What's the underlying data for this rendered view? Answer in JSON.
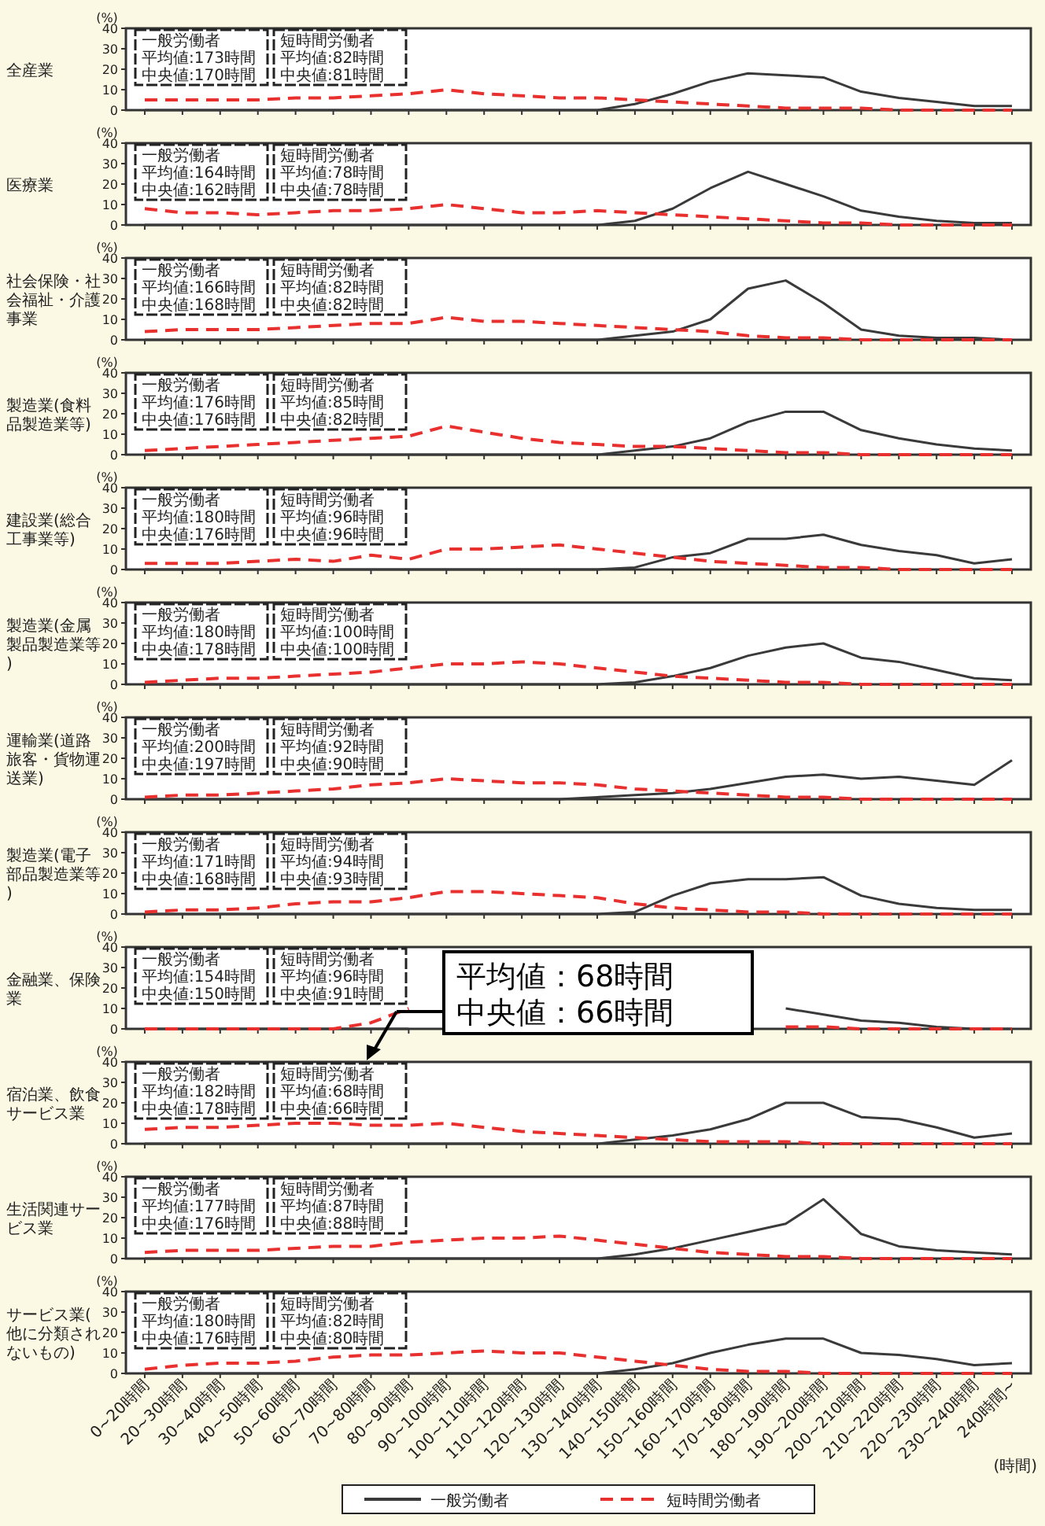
{
  "chart_data": [
    {
      "type": "line",
      "title": "全産業",
      "ylabel": "(%)",
      "categories": [
        null,
        null,
        null,
        null,
        null,
        null,
        null,
        null,
        null,
        null,
        null,
        null,
        null,
        null,
        null,
        null,
        null,
        null,
        null,
        null,
        null,
        null,
        null,
        null
      ],
      "ylim": [
        0,
        40
      ],
      "yticks": [
        0,
        10,
        20,
        30,
        40
      ],
      "series": [
        {
          "color": "#3a3a3a",
          "line_style": "solid",
          "values": [
            0,
            0,
            0,
            0,
            0,
            0,
            0,
            0,
            0,
            0,
            0,
            0,
            0,
            3,
            8,
            14,
            18,
            17,
            16,
            9,
            6,
            4,
            2,
            2
          ]
        },
        {
          "color": "#e8302f",
          "line_style": "dashed",
          "values": [
            5,
            5,
            5,
            5,
            6,
            6,
            7,
            8,
            10,
            8,
            7,
            6,
            6,
            5,
            4,
            3,
            2,
            1,
            1,
            1,
            0,
            0,
            0,
            0
          ]
        }
      ],
      "annotations": [
        "一般労働者",
        "平均値:173時間",
        "中央値:170時間",
        "短時間労働者",
        "平均値:82時間",
        "中央値:81時間"
      ]
    },
    {
      "type": "line",
      "title": "医療業",
      "ylabel": "(%)",
      "categories": [
        null,
        null,
        null,
        null,
        null,
        null,
        null,
        null,
        null,
        null,
        null,
        null,
        null,
        null,
        null,
        null,
        null,
        null,
        null,
        null,
        null,
        null,
        null,
        null
      ],
      "ylim": [
        0,
        40
      ],
      "yticks": [
        0,
        10,
        20,
        30,
        40
      ],
      "series": [
        {
          "color": "#3a3a3a",
          "line_style": "solid",
          "values": [
            0,
            0,
            0,
            0,
            0,
            0,
            0,
            0,
            0,
            0,
            0,
            0,
            0,
            2,
            8,
            18,
            26,
            20,
            14,
            7,
            4,
            2,
            1,
            1
          ]
        },
        {
          "color": "#e8302f",
          "line_style": "dashed",
          "values": [
            8,
            6,
            6,
            5,
            6,
            7,
            7,
            8,
            10,
            8,
            6,
            6,
            7,
            6,
            5,
            4,
            3,
            2,
            1,
            1,
            0,
            0,
            0,
            0
          ]
        }
      ],
      "annotations": [
        "一般労働者",
        "平均値:164時間",
        "中央値:162時間",
        "短時間労働者",
        "平均値:78時間",
        "中央値:78時間"
      ]
    },
    {
      "type": "line",
      "title": "社会保険・社会福祉・介護事業",
      "ylabel": "(%)",
      "categories": [
        null,
        null,
        null,
        null,
        null,
        null,
        null,
        null,
        null,
        null,
        null,
        null,
        null,
        null,
        null,
        null,
        null,
        null,
        null,
        null,
        null,
        null,
        null,
        null
      ],
      "ylim": [
        0,
        40
      ],
      "yticks": [
        0,
        10,
        20,
        30,
        40
      ],
      "series": [
        {
          "color": "#3a3a3a",
          "line_style": "solid",
          "values": [
            0,
            0,
            0,
            0,
            0,
            0,
            0,
            0,
            0,
            0,
            0,
            0,
            0,
            2,
            4,
            10,
            25,
            29,
            18,
            5,
            2,
            1,
            1,
            0
          ]
        },
        {
          "color": "#e8302f",
          "line_style": "dashed",
          "values": [
            4,
            5,
            5,
            5,
            6,
            7,
            8,
            8,
            11,
            9,
            9,
            8,
            7,
            6,
            5,
            4,
            2,
            1,
            1,
            0,
            0,
            0,
            0,
            0
          ]
        }
      ],
      "annotations": [
        "一般労働者",
        "平均値:166時間",
        "中央値:168時間",
        "短時間労働者",
        "平均値:82時間",
        "中央値:82時間"
      ]
    },
    {
      "type": "line",
      "title": "製造業(食料品製造業等)",
      "ylabel": "(%)",
      "categories": [
        null,
        null,
        null,
        null,
        null,
        null,
        null,
        null,
        null,
        null,
        null,
        null,
        null,
        null,
        null,
        null,
        null,
        null,
        null,
        null,
        null,
        null,
        null,
        null
      ],
      "ylim": [
        0,
        40
      ],
      "yticks": [
        0,
        10,
        20,
        30,
        40
      ],
      "series": [
        {
          "color": "#3a3a3a",
          "line_style": "solid",
          "values": [
            0,
            0,
            0,
            0,
            0,
            0,
            0,
            0,
            0,
            0,
            0,
            0,
            0,
            2,
            4,
            8,
            16,
            21,
            21,
            12,
            8,
            5,
            3,
            2
          ]
        },
        {
          "color": "#e8302f",
          "line_style": "dashed",
          "values": [
            2,
            3,
            4,
            5,
            6,
            7,
            8,
            9,
            14,
            11,
            8,
            6,
            5,
            4,
            4,
            3,
            2,
            1,
            1,
            0,
            0,
            0,
            0,
            0
          ]
        }
      ],
      "annotations": [
        "一般労働者",
        "平均値:176時間",
        "中央値:176時間",
        "短時間労働者",
        "平均値:85時間",
        "中央値:82時間"
      ]
    },
    {
      "type": "line",
      "title": "建設業(総合工事業等)",
      "ylabel": "(%)",
      "categories": [
        null,
        null,
        null,
        null,
        null,
        null,
        null,
        null,
        null,
        null,
        null,
        null,
        null,
        null,
        null,
        null,
        null,
        null,
        null,
        null,
        null,
        null,
        null,
        null
      ],
      "ylim": [
        0,
        40
      ],
      "yticks": [
        0,
        10,
        20,
        30,
        40
      ],
      "series": [
        {
          "color": "#3a3a3a",
          "line_style": "solid",
          "values": [
            0,
            0,
            0,
            0,
            0,
            0,
            0,
            0,
            0,
            0,
            0,
            0,
            0,
            1,
            6,
            8,
            15,
            15,
            17,
            12,
            9,
            7,
            3,
            5
          ]
        },
        {
          "color": "#e8302f",
          "line_style": "dashed",
          "values": [
            3,
            3,
            3,
            4,
            5,
            4,
            7,
            5,
            10,
            10,
            11,
            12,
            10,
            8,
            6,
            4,
            3,
            2,
            1,
            1,
            0,
            0,
            0,
            0
          ]
        }
      ],
      "annotations": [
        "一般労働者",
        "平均値:180時間",
        "中央値:176時間",
        "短時間労働者",
        "平均値:96時間",
        "中央値:96時間"
      ]
    },
    {
      "type": "line",
      "title": "製造業(金属製品製造業等)",
      "ylabel": "(%)",
      "categories": [
        null,
        null,
        null,
        null,
        null,
        null,
        null,
        null,
        null,
        null,
        null,
        null,
        null,
        null,
        null,
        null,
        null,
        null,
        null,
        null,
        null,
        null,
        null,
        null
      ],
      "ylim": [
        0,
        40
      ],
      "yticks": [
        0,
        10,
        20,
        30,
        40
      ],
      "series": [
        {
          "color": "#3a3a3a",
          "line_style": "solid",
          "values": [
            0,
            0,
            0,
            0,
            0,
            0,
            0,
            0,
            0,
            0,
            0,
            0,
            0,
            1,
            4,
            8,
            14,
            18,
            20,
            13,
            11,
            7,
            3,
            2
          ]
        },
        {
          "color": "#e8302f",
          "line_style": "dashed",
          "values": [
            1,
            2,
            3,
            3,
            4,
            5,
            6,
            8,
            10,
            10,
            11,
            10,
            8,
            6,
            4,
            3,
            2,
            1,
            1,
            0,
            0,
            0,
            0,
            0
          ]
        }
      ],
      "annotations": [
        "一般労働者",
        "平均値:180時間",
        "中央値:178時間",
        "短時間労働者",
        "平均値:100時間",
        "中央値:100時間"
      ]
    },
    {
      "type": "line",
      "title": "運輸業(道路旅客・貨物運送業)",
      "ylabel": "(%)",
      "categories": [
        null,
        null,
        null,
        null,
        null,
        null,
        null,
        null,
        null,
        null,
        null,
        null,
        null,
        null,
        null,
        null,
        null,
        null,
        null,
        null,
        null,
        null,
        null,
        null
      ],
      "ylim": [
        0,
        40
      ],
      "yticks": [
        0,
        10,
        20,
        30,
        40
      ],
      "series": [
        {
          "color": "#3a3a3a",
          "line_style": "solid",
          "values": [
            0,
            0,
            0,
            0,
            0,
            0,
            0,
            0,
            0,
            0,
            0,
            0,
            1,
            2,
            3,
            5,
            8,
            11,
            12,
            10,
            11,
            9,
            7,
            19
          ]
        },
        {
          "color": "#e8302f",
          "line_style": "dashed",
          "values": [
            1,
            2,
            2,
            3,
            4,
            5,
            7,
            8,
            10,
            9,
            8,
            8,
            7,
            5,
            4,
            3,
            2,
            1,
            1,
            0,
            0,
            0,
            0,
            0
          ]
        }
      ],
      "annotations": [
        "一般労働者",
        "平均値:200時間",
        "中央値:197時間",
        "短時間労働者",
        "平均値:92時間",
        "中央値:90時間"
      ]
    },
    {
      "type": "line",
      "title": "製造業(電子部品製造業等)",
      "ylabel": "(%)",
      "categories": [
        null,
        null,
        null,
        null,
        null,
        null,
        null,
        null,
        null,
        null,
        null,
        null,
        null,
        null,
        null,
        null,
        null,
        null,
        null,
        null,
        null,
        null,
        null,
        null
      ],
      "ylim": [
        0,
        40
      ],
      "yticks": [
        0,
        10,
        20,
        30,
        40
      ],
      "series": [
        {
          "color": "#3a3a3a",
          "line_style": "solid",
          "values": [
            0,
            0,
            0,
            0,
            0,
            0,
            0,
            0,
            0,
            0,
            0,
            0,
            0,
            1,
            9,
            15,
            17,
            17,
            18,
            9,
            5,
            3,
            2,
            2
          ]
        },
        {
          "color": "#e8302f",
          "line_style": "dashed",
          "values": [
            1,
            2,
            2,
            3,
            5,
            6,
            6,
            8,
            11,
            11,
            10,
            9,
            8,
            5,
            3,
            2,
            1,
            1,
            0,
            0,
            0,
            0,
            0,
            0
          ]
        }
      ],
      "annotations": [
        "一般労働者",
        "平均値:171時間",
        "中央値:168時間",
        "短時間労働者",
        "平均値:94時間",
        "中央値:93時間"
      ]
    },
    {
      "type": "line",
      "title": "金融業、保険業",
      "ylabel": "(%)",
      "categories": [
        null,
        null,
        null,
        null,
        null,
        null,
        null,
        null,
        null,
        null,
        null,
        null,
        null,
        null,
        null,
        null,
        null,
        null,
        null,
        null,
        null,
        null,
        null,
        null
      ],
      "ylim": [
        0,
        40
      ],
      "yticks": [
        0,
        10,
        20,
        30,
        40
      ],
      "series": [
        {
          "color": "#3a3a3a",
          "line_style": "solid",
          "values": [
            0,
            0,
            0,
            0,
            0,
            0,
            0,
            0,
            null,
            null,
            null,
            null,
            null,
            null,
            null,
            null,
            null,
            10,
            7,
            4,
            3,
            1,
            0,
            0
          ]
        },
        {
          "color": "#e8302f",
          "line_style": "dashed",
          "values": [
            0,
            0,
            0,
            0,
            0,
            0,
            3,
            10,
            null,
            null,
            null,
            null,
            null,
            null,
            null,
            null,
            null,
            1,
            1,
            0,
            0,
            0,
            0,
            0
          ]
        }
      ],
      "annotations": [
        "一般労働者",
        "平均値:154時間",
        "中央値:150時間",
        "短時間労働者",
        "平均値:96時間",
        "中央値:91時間"
      ]
    },
    {
      "type": "line",
      "title": "宿泊業、飲食サービス業",
      "ylabel": "(%)",
      "categories": [
        null,
        null,
        null,
        null,
        null,
        null,
        null,
        null,
        null,
        null,
        null,
        null,
        null,
        null,
        null,
        null,
        null,
        null,
        null,
        null,
        null,
        null,
        null,
        null
      ],
      "ylim": [
        0,
        40
      ],
      "yticks": [
        0,
        10,
        20,
        30,
        40
      ],
      "series": [
        {
          "color": "#3a3a3a",
          "line_style": "solid",
          "values": [
            0,
            0,
            0,
            0,
            0,
            0,
            0,
            0,
            0,
            0,
            0,
            0,
            0,
            2,
            4,
            7,
            12,
            20,
            20,
            13,
            12,
            8,
            3,
            5
          ]
        },
        {
          "color": "#e8302f",
          "line_style": "dashed",
          "values": [
            7,
            8,
            8,
            9,
            10,
            10,
            9,
            9,
            10,
            8,
            6,
            5,
            4,
            3,
            2,
            1,
            1,
            1,
            0,
            0,
            0,
            0,
            0,
            0
          ]
        }
      ],
      "annotations": [
        "一般労働者",
        "平均値:182時間",
        "中央値:178時間",
        "短時間労働者",
        "平均値:68時間",
        "中央値:66時間",
        "平均値：68時間",
        "中央値：66時間"
      ]
    },
    {
      "type": "line",
      "title": "生活関連サービス業",
      "ylabel": "(%)",
      "categories": [
        null,
        null,
        null,
        null,
        null,
        null,
        null,
        null,
        null,
        null,
        null,
        null,
        null,
        null,
        null,
        null,
        null,
        null,
        null,
        null,
        null,
        null,
        null,
        null
      ],
      "ylim": [
        0,
        40
      ],
      "yticks": [
        0,
        10,
        20,
        30,
        40
      ],
      "series": [
        {
          "color": "#3a3a3a",
          "line_style": "solid",
          "values": [
            0,
            0,
            0,
            0,
            0,
            0,
            0,
            0,
            0,
            0,
            0,
            0,
            0,
            2,
            5,
            9,
            13,
            17,
            29,
            12,
            6,
            4,
            3,
            2
          ]
        },
        {
          "color": "#e8302f",
          "line_style": "dashed",
          "values": [
            3,
            4,
            4,
            4,
            5,
            6,
            6,
            8,
            9,
            10,
            10,
            11,
            9,
            7,
            5,
            3,
            2,
            1,
            1,
            0,
            0,
            0,
            0,
            0
          ]
        }
      ],
      "annotations": [
        "一般労働者",
        "平均値:177時間",
        "中央値:176時間",
        "短時間労働者",
        "平均値:87時間",
        "中央値:88時間"
      ]
    },
    {
      "type": "line",
      "title": "サービス業(他に分類されないもの)",
      "ylabel": "(%)",
      "xlabel": "(時間)",
      "legend": "bottom",
      "categories": [
        "0~20時間",
        "20~30時間",
        "30~40時間",
        "40~50時間",
        "50~60時間",
        "60~70時間",
        "70~80時間",
        "80~90時間",
        "90~100時間",
        "100~110時間",
        "110~120時間",
        "120~130時間",
        "130~140時間",
        "140~150時間",
        "150~160時間",
        "160~170時間",
        "170~180時間",
        "180~190時間",
        "190~200時間",
        "200~210時間",
        "210~220時間",
        "220~230時間",
        "230~240時間",
        "240時間~"
      ],
      "ylim": [
        0,
        40
      ],
      "yticks": [
        0,
        10,
        20,
        30,
        40
      ],
      "series": [
        {
          "name": "一般労働者",
          "color": "#3a3a3a",
          "line_style": "solid",
          "values": [
            0,
            0,
            0,
            0,
            0,
            0,
            0,
            0,
            0,
            0,
            0,
            0,
            0,
            2,
            5,
            10,
            14,
            17,
            17,
            10,
            9,
            7,
            4,
            5
          ]
        },
        {
          "name": "短時間労働者",
          "color": "#e8302f",
          "line_style": "dashed",
          "values": [
            2,
            4,
            5,
            5,
            6,
            8,
            9,
            9,
            10,
            11,
            10,
            10,
            8,
            6,
            4,
            2,
            1,
            1,
            0,
            0,
            0,
            0,
            0,
            0
          ]
        }
      ],
      "annotations": [
        "一般労働者",
        "平均値:180時間",
        "中央値:176時間",
        "短時間労働者",
        "平均値:82時間",
        "中央値:80時間"
      ]
    }
  ]
}
